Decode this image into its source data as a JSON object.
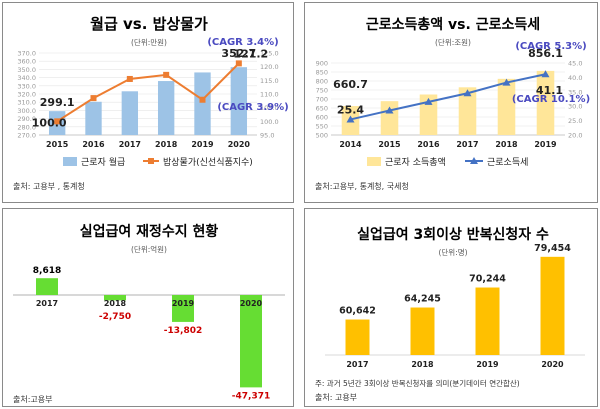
{
  "chart_data": [
    {
      "type": "bar+line",
      "title": "월급 vs. 밥상물가",
      "unit": "(단위:만원)",
      "categories": [
        "2015",
        "2016",
        "2017",
        "2018",
        "2019",
        "2020"
      ],
      "series": [
        {
          "name": "근로자 월급",
          "type": "bar",
          "axis": "left",
          "values": [
            299.1,
            310.5,
            323.3,
            335.8,
            346.3,
            352.7
          ]
        },
        {
          "name": "밥상물가(신선식품지수)",
          "type": "line",
          "axis": "right",
          "values": [
            100.0,
            108.5,
            115.5,
            117.0,
            107.9,
            121.2
          ]
        }
      ],
      "yleft": {
        "min": 270,
        "max": 370,
        "ticks": [
          "270.0",
          "280.0",
          "290.0",
          "300.0",
          "310.0",
          "320.0",
          "330.0",
          "340.0",
          "350.0",
          "360.0",
          "370.0"
        ]
      },
      "yright": {
        "min": 95,
        "max": 125,
        "ticks": [
          "95.0",
          "100.0",
          "105.0",
          "110.0",
          "115.0",
          "120.0",
          "125.0"
        ]
      },
      "labels": [
        {
          "text": "299.1",
          "series": 0,
          "index": 0
        },
        {
          "text": "352.7",
          "series": 0,
          "index": 5
        },
        {
          "text": "100.0",
          "series": 1,
          "index": 0
        },
        {
          "text": "121.2",
          "series": 1,
          "index": 5
        }
      ],
      "cagr": [
        "(CAGR 3.4%)",
        "(CAGR 3.9%)"
      ],
      "source": "출처: 고용부 , 통계청",
      "colors": {
        "bar": "#9dc3e6",
        "line": "#ed7d31",
        "cagr": "#4a4ac0"
      }
    },
    {
      "type": "bar+line",
      "title": "근로소득총액 vs. 근로소득세",
      "unit": "(단위:조원)",
      "categories": [
        "2014",
        "2015",
        "2016",
        "2017",
        "2018",
        "2019"
      ],
      "series": [
        {
          "name": "근로자 소득총액",
          "type": "bar",
          "axis": "left",
          "values": [
            660.7,
            688,
            725,
            765,
            812,
            856.1
          ]
        },
        {
          "name": "근로소득세",
          "type": "line",
          "axis": "right",
          "values": [
            25.4,
            28.5,
            31.5,
            34.5,
            38.2,
            41.1
          ]
        }
      ],
      "yleft": {
        "min": 500,
        "max": 900,
        "ticks": [
          "500",
          "550",
          "600",
          "650",
          "700",
          "750",
          "800",
          "850",
          "900"
        ]
      },
      "yright": {
        "min": 20,
        "max": 45,
        "ticks": [
          "20.0",
          "25.0",
          "30.0",
          "35.0",
          "40.0",
          "45.0"
        ]
      },
      "labels": [
        {
          "text": "660.7",
          "series": 0,
          "index": 0
        },
        {
          "text": "856.1",
          "series": 0,
          "index": 5
        },
        {
          "text": "25.4",
          "series": 1,
          "index": 0
        },
        {
          "text": "41.1",
          "series": 1,
          "index": 5
        }
      ],
      "cagr": [
        "(CAGR 5.3%)",
        "(CAGR 10.1%)"
      ],
      "source": "출처:고용부, 통계청, 국세청",
      "colors": {
        "bar": "#ffe699",
        "line": "#4472c4",
        "cagr": "#4a4ac0"
      }
    },
    {
      "type": "bar",
      "title": "실업급여 재정수지 현황",
      "unit": "(단위:억원)",
      "categories": [
        "2017",
        "2018",
        "2019",
        "2020"
      ],
      "values": [
        8618,
        -2750,
        -13802,
        -47371
      ],
      "labels": [
        "8,618",
        "-2,750",
        "-13,802",
        "-47,371"
      ],
      "source": "출처:고용부",
      "colors": {
        "bar": "#66dd33",
        "positive_label": "#000000",
        "negative_label": "#cc0000"
      }
    },
    {
      "type": "bar",
      "title": "실업급여 3회이상 반복신청자 수",
      "unit": "(단위:명)",
      "categories": [
        "2017",
        "2018",
        "2019",
        "2020"
      ],
      "values": [
        60642,
        64245,
        70244,
        79454
      ],
      "labels": [
        "60,642",
        "64,245",
        "70,244",
        "79,454"
      ],
      "note": "주: 과거 5년간 3회이상 반복신청자를 의미(분기데이터 연간합산)",
      "source": "출처: 고용부",
      "colors": {
        "bar": "#ffc000"
      }
    }
  ]
}
